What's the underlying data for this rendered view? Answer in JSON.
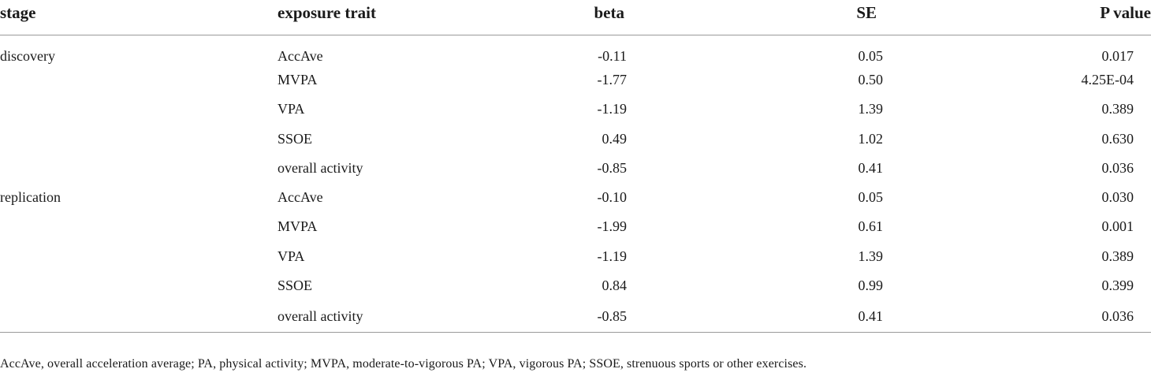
{
  "table": {
    "headers": {
      "stage": "stage",
      "exposure_trait": "exposure trait",
      "beta": "beta",
      "se": "SE",
      "p_value": "P value"
    },
    "rows": [
      {
        "stage": "discovery",
        "exposure_trait": "AccAve",
        "beta": "-0.11",
        "se": "0.05",
        "p_value": "0.017"
      },
      {
        "stage": "",
        "exposure_trait": "MVPA",
        "beta": "-1.77",
        "se": "0.50",
        "p_value": "4.25E-04"
      },
      {
        "stage": "",
        "exposure_trait": "VPA",
        "beta": "-1.19",
        "se": "1.39",
        "p_value": "0.389"
      },
      {
        "stage": "",
        "exposure_trait": "SSOE",
        "beta": "0.49",
        "se": "1.02",
        "p_value": "0.630"
      },
      {
        "stage": "",
        "exposure_trait": "overall activity",
        "beta": "-0.85",
        "se": "0.41",
        "p_value": "0.036"
      },
      {
        "stage": "replication",
        "exposure_trait": "AccAve",
        "beta": "-0.10",
        "se": "0.05",
        "p_value": "0.030"
      },
      {
        "stage": "",
        "exposure_trait": "MVPA",
        "beta": "-1.99",
        "se": "0.61",
        "p_value": "0.001"
      },
      {
        "stage": "",
        "exposure_trait": "VPA",
        "beta": "-1.19",
        "se": "1.39",
        "p_value": "0.389"
      },
      {
        "stage": "",
        "exposure_trait": "SSOE",
        "beta": "0.84",
        "se": "0.99",
        "p_value": "0.399"
      },
      {
        "stage": "",
        "exposure_trait": "overall activity",
        "beta": "-0.85",
        "se": "0.41",
        "p_value": "0.036"
      }
    ]
  },
  "footnote": "AccAve, overall acceleration average; PA, physical activity; MVPA, moderate-to-vigorous PA; VPA, vigorous PA; SSOE, strenuous sports or other exercises."
}
